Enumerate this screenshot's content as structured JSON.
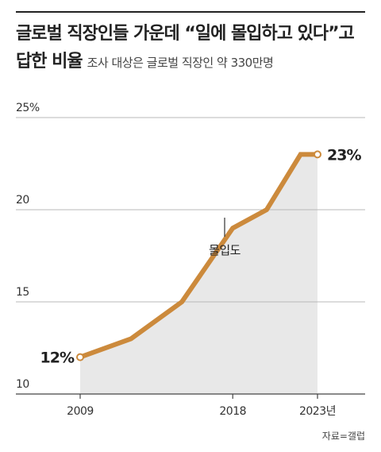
{
  "header": {
    "title_line1": "글로벌 직장인들 가운데 “일에 몰입하고 있다”고",
    "title_line2": "답한 비율",
    "subtitle": "조사 대상은 글로벌 직장인 약 330만명"
  },
  "source": "자료=갤럽",
  "colors": {
    "line": "#CC8A3C",
    "area": "#E8E8E8",
    "grid": "#B8B8B8",
    "text": "#222222"
  },
  "chart_data": {
    "type": "line",
    "title": "글로벌 직장인들 가운데 “일에 몰입하고 있다”고 답한 비율",
    "subtitle": "조사 대상은 글로벌 직장인 약 330만명",
    "x": [
      2009,
      2012,
      2015,
      2018,
      2020,
      2022,
      2023
    ],
    "series": [
      {
        "name": "몰입도",
        "values": [
          12,
          13,
          15,
          19,
          20,
          23,
          23
        ]
      }
    ],
    "ylim": [
      10,
      25
    ],
    "xlim": [
      2009,
      2023
    ],
    "y_ticks": [
      "25%",
      "20",
      "15",
      "10"
    ],
    "x_ticks": [
      "2009",
      "2018",
      "2023년"
    ],
    "annotations": {
      "start_label": "12%",
      "end_label": "23%",
      "series_label": "몰입도"
    },
    "grid": true,
    "area_fill": true
  }
}
